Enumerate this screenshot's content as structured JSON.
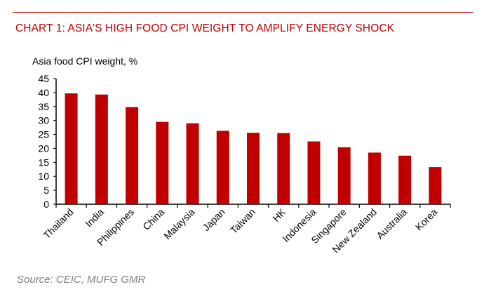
{
  "chart_data": {
    "type": "bar",
    "title": "CHART 1: ASIA'S HIGH FOOD CPI WEIGHT TO AMPLIFY ENERGY SHOCK",
    "ylabel": "Asia food CPI weight, %",
    "xlabel": "",
    "categories": [
      "Thailand",
      "India",
      "Philippines",
      "China",
      "Malaysia",
      "Japan",
      "Taiwan",
      "HK",
      "Indonesia",
      "Singapore",
      "New Zealand",
      "Australia",
      "Korea"
    ],
    "values": [
      39.7,
      39.3,
      34.8,
      29.5,
      29.0,
      26.3,
      25.6,
      25.5,
      22.5,
      20.4,
      18.5,
      17.4,
      13.3
    ],
    "ylim": [
      0,
      45
    ],
    "yticks": [
      "0",
      "5",
      "10",
      "15",
      "20",
      "25",
      "30",
      "35",
      "40",
      "45"
    ],
    "grid": false,
    "bar_color": "#c00000",
    "source": "Source: CEIC, MUFG GMR"
  }
}
